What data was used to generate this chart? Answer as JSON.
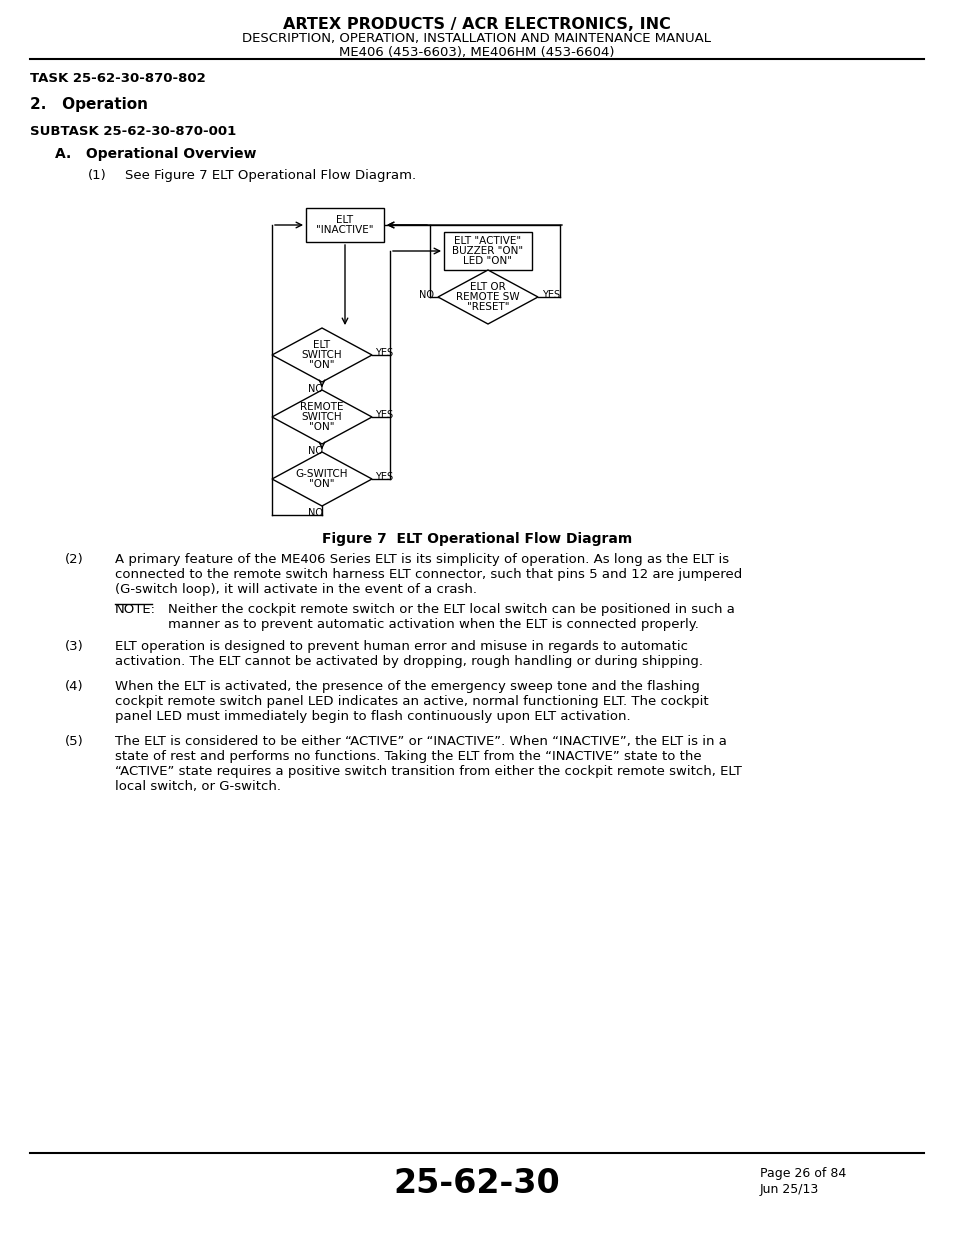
{
  "header_line1": "ARTEX PRODUCTS / ACR ELECTRONICS, INC",
  "header_line2": "DESCRIPTION, OPERATION, INSTALLATION AND MAINTENANCE MANUAL",
  "header_line3": "ME406 (453-6603), ME406HM (453-6604)",
  "task": "TASK 25-62-30-870-802",
  "section_num": "2.",
  "section_title": "Operation",
  "subtask": "SUBTASK 25-62-30-870-001",
  "subsection": "A.",
  "subsection_title": "Operational Overview",
  "item1_num": "(1)",
  "item1_text": "See Figure 7 ELT Operational Flow Diagram.",
  "figure_caption": "Figure 7  ELT Operational Flow Diagram",
  "item2_num": "(2)",
  "item2_text": "A primary feature of the ME406 Series ELT is its simplicity of operation. As long as the ELT is\nconnected to the remote switch harness ELT connector, such that pins 5 and 12 are jumpered\n(G-switch loop), it will activate in the event of a crash.",
  "note_label": "NOTE:",
  "note_text": "Neither the cockpit remote switch or the ELT local switch can be positioned in such a\nmanner as to prevent automatic activation when the ELT is connected properly.",
  "item3_num": "(3)",
  "item3_text": "ELT operation is designed to prevent human error and misuse in regards to automatic\nactivation. The ELT cannot be activated by dropping, rough handling or during shipping.",
  "item4_num": "(4)",
  "item4_text": "When the ELT is activated, the presence of the emergency sweep tone and the flashing\ncockpit remote switch panel LED indicates an active, normal functioning ELT. The cockpit\npanel LED must immediately begin to flash continuously upon ELT activation.",
  "item5_num": "(5)",
  "item5_text": "The ELT is considered to be either “ACTIVE” or “INACTIVE”. When “INACTIVE”, the ELT is in a\nstate of rest and performs no functions. Taking the ELT from the “INACTIVE” state to the\n“ACTIVE” state requires a positive switch transition from either the cockpit remote switch, ELT\nlocal switch, or G-switch.",
  "footer_page_num": "25-62-30",
  "footer_page": "Page 26 of 84",
  "footer_date": "Jun 25/13",
  "bg_color": "#ffffff",
  "text_color": "#000000"
}
